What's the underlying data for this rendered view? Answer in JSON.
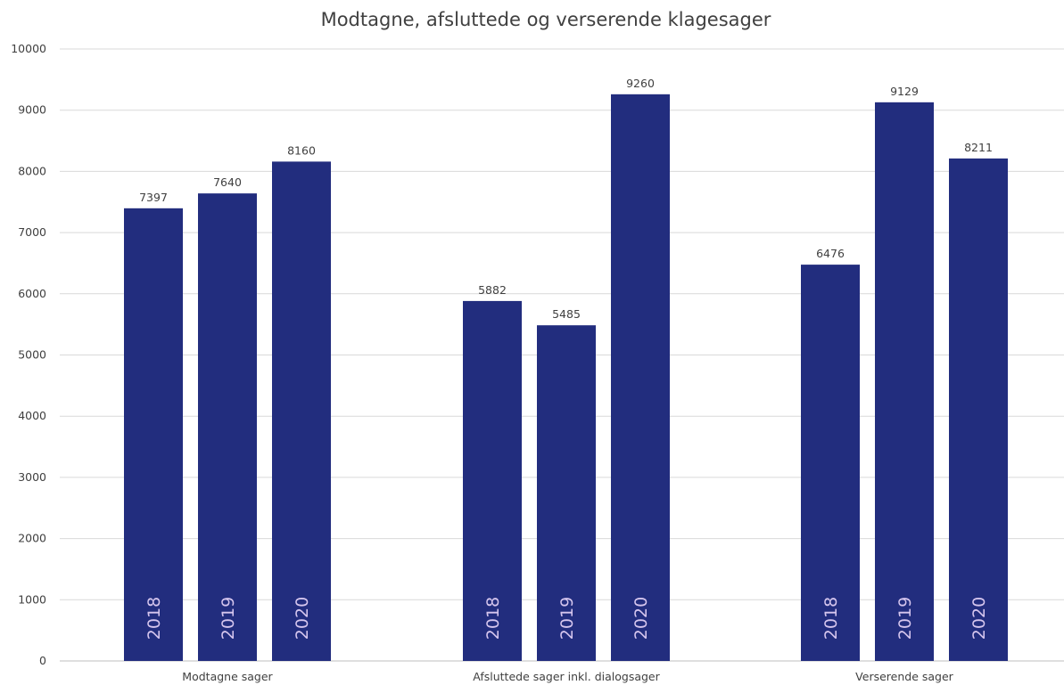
{
  "chart_data": {
    "type": "bar",
    "title": "Modtagne, afsluttede og verserende klagesager",
    "xlabel": "",
    "ylabel": "",
    "ylim": [
      0,
      10000
    ],
    "y_ticks": [
      "0",
      "1000",
      "2000",
      "3000",
      "4000",
      "5000",
      "6000",
      "7000",
      "8000",
      "9000",
      "10000"
    ],
    "grid": true,
    "categories": [
      "Modtagne sager",
      "Afsluttede sager inkl. dialogsager",
      "Verserende sager"
    ],
    "series": [
      {
        "name": "2018",
        "values": [
          7397,
          5882,
          6476
        ]
      },
      {
        "name": "2019",
        "values": [
          7640,
          5485,
          9129
        ]
      },
      {
        "name": "2020",
        "values": [
          8160,
          9260,
          8211
        ]
      }
    ],
    "colors": {
      "bar": "#222d7e",
      "year_label": "#d6c6ee",
      "text": "#404040",
      "grid": "#d9d9d9"
    }
  }
}
